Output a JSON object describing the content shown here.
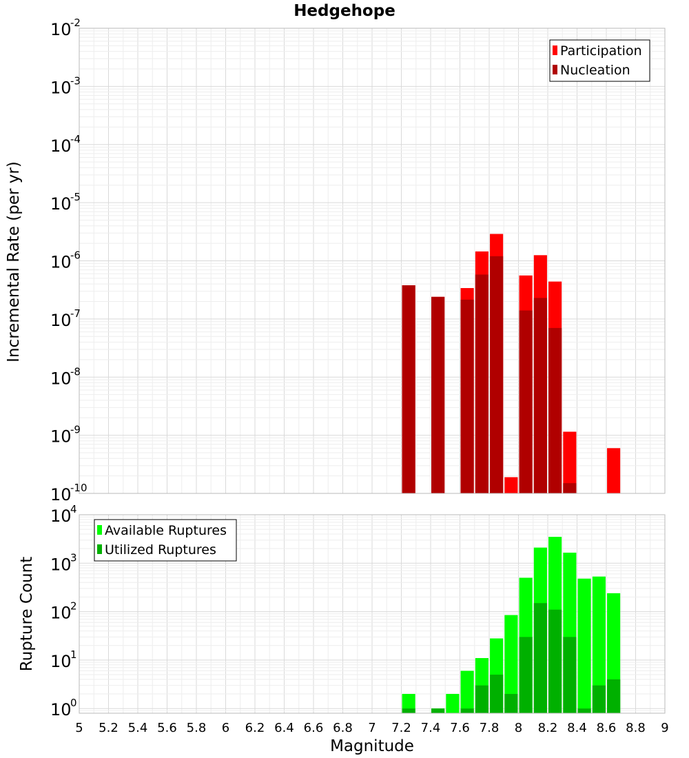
{
  "colors": {
    "participation": "#ff0000",
    "nucleation": "#b00000",
    "available": "#00ff00",
    "utilized": "#00b000",
    "grid_major": "#d9d9d9",
    "grid_minor": "#eeeeee",
    "frame": "#b8b8b8"
  },
  "chart_data": [
    {
      "type": "bar",
      "title": "Hedgehope",
      "ylabel": "Incremental Rate (per yr)",
      "xlabel": "",
      "xlim": [
        5,
        9
      ],
      "ylim": [
        1e-10,
        0.01
      ],
      "yscale": "log",
      "ytick_base": "10",
      "yticks_exp": [
        "-10",
        "-9",
        "-8",
        "-7",
        "-6",
        "-5",
        "-4",
        "-3",
        "-2"
      ],
      "grid": true,
      "legend_position": "top-right",
      "bar_width": 0.09,
      "series": [
        {
          "name": "Participation",
          "color_key": "participation",
          "x": [
            7.25,
            7.45,
            7.65,
            7.75,
            7.85,
            7.95,
            8.05,
            8.15,
            8.25,
            8.35,
            8.65
          ],
          "values": [
            3.8e-07,
            2.4e-07,
            3.4e-07,
            1.45e-06,
            2.9e-06,
            1.9e-10,
            5.6e-07,
            1.25e-06,
            4.4e-07,
            1.15e-09,
            6e-10
          ]
        },
        {
          "name": "Nucleation",
          "color_key": "nucleation",
          "x": [
            7.25,
            7.45,
            7.65,
            7.75,
            7.85,
            8.05,
            8.15,
            8.25,
            8.35
          ],
          "values": [
            3.8e-07,
            2.4e-07,
            2.15e-07,
            5.8e-07,
            1.2e-06,
            1.4e-07,
            2.3e-07,
            7e-08,
            1.5e-10
          ]
        }
      ]
    },
    {
      "type": "bar",
      "title": "",
      "ylabel": "Rupture Count",
      "xlabel": "Magnitude",
      "xlim": [
        5,
        9
      ],
      "ylim": [
        0.8,
        10000
      ],
      "yscale": "log",
      "ytick_base": "10",
      "yticks_exp": [
        "0",
        "1",
        "2",
        "3",
        "4"
      ],
      "xticks": [
        "5",
        "5.2",
        "5.4",
        "5.6",
        "5.8",
        "6",
        "6.2",
        "6.4",
        "6.6",
        "6.8",
        "7",
        "7.2",
        "7.4",
        "7.6",
        "7.8",
        "8",
        "8.2",
        "8.4",
        "8.6",
        "8.8",
        "9"
      ],
      "grid": true,
      "legend_position": "top-left",
      "bar_width": 0.09,
      "series": [
        {
          "name": "Available Ruptures",
          "color_key": "available",
          "x": [
            7.25,
            7.45,
            7.55,
            7.65,
            7.75,
            7.85,
            7.95,
            8.05,
            8.15,
            8.25,
            8.35,
            8.45,
            8.55,
            8.65
          ],
          "values": [
            2,
            1,
            2,
            6,
            11,
            28,
            85,
            500,
            2100,
            3500,
            1650,
            480,
            530,
            240
          ]
        },
        {
          "name": "Utilized Ruptures",
          "color_key": "utilized",
          "x": [
            7.25,
            7.45,
            7.65,
            7.75,
            7.85,
            7.95,
            8.05,
            8.15,
            8.25,
            8.35,
            8.45,
            8.55,
            8.65
          ],
          "values": [
            1,
            1,
            1,
            3,
            5,
            2,
            30,
            150,
            110,
            30,
            1,
            3,
            4
          ]
        }
      ]
    }
  ]
}
